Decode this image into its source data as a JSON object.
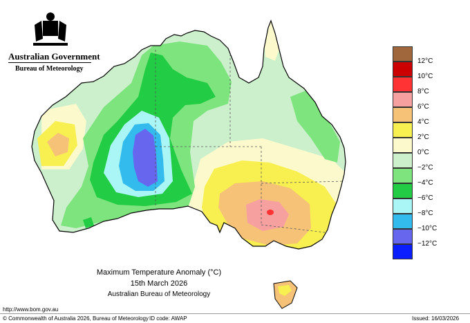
{
  "header": {
    "government": "Australian Government",
    "bureau": "Bureau of Meteorology"
  },
  "title": {
    "line1": "Maximum Temperature Anomaly (°C)",
    "line2": "15th March 2026",
    "line3": "Australian Bureau of Meteorology"
  },
  "legend": [
    {
      "label": "12°C",
      "color": "#a0663c"
    },
    {
      "label": "10°C",
      "color": "#cc0000"
    },
    {
      "label": "8°C",
      "color": "#ff3333"
    },
    {
      "label": "6°C",
      "color": "#f7a0a0"
    },
    {
      "label": "4°C",
      "color": "#f5c278"
    },
    {
      "label": "2°C",
      "color": "#f8f050"
    },
    {
      "label": "0°C",
      "color": "#fcfacc"
    },
    {
      "label": "−2°C",
      "color": "#ccf0cc"
    },
    {
      "label": "−4°C",
      "color": "#7ee47e"
    },
    {
      "label": "−6°C",
      "color": "#22cc44"
    },
    {
      "label": "−8°C",
      "color": "#aaf5f5"
    },
    {
      "label": "−10°C",
      "color": "#33bbee"
    },
    {
      "label": "−12°C",
      "color": "#6666ee"
    },
    {
      "label": "",
      "color": "#0a1eff"
    }
  ],
  "footer": {
    "url": "http://www.bom.gov.au",
    "copyright": "© Commonwealth of Australia 2026, Bureau of Meteorology",
    "id_code": "ID code: AWAP",
    "issued": "Issued: 16/03/2026"
  }
}
